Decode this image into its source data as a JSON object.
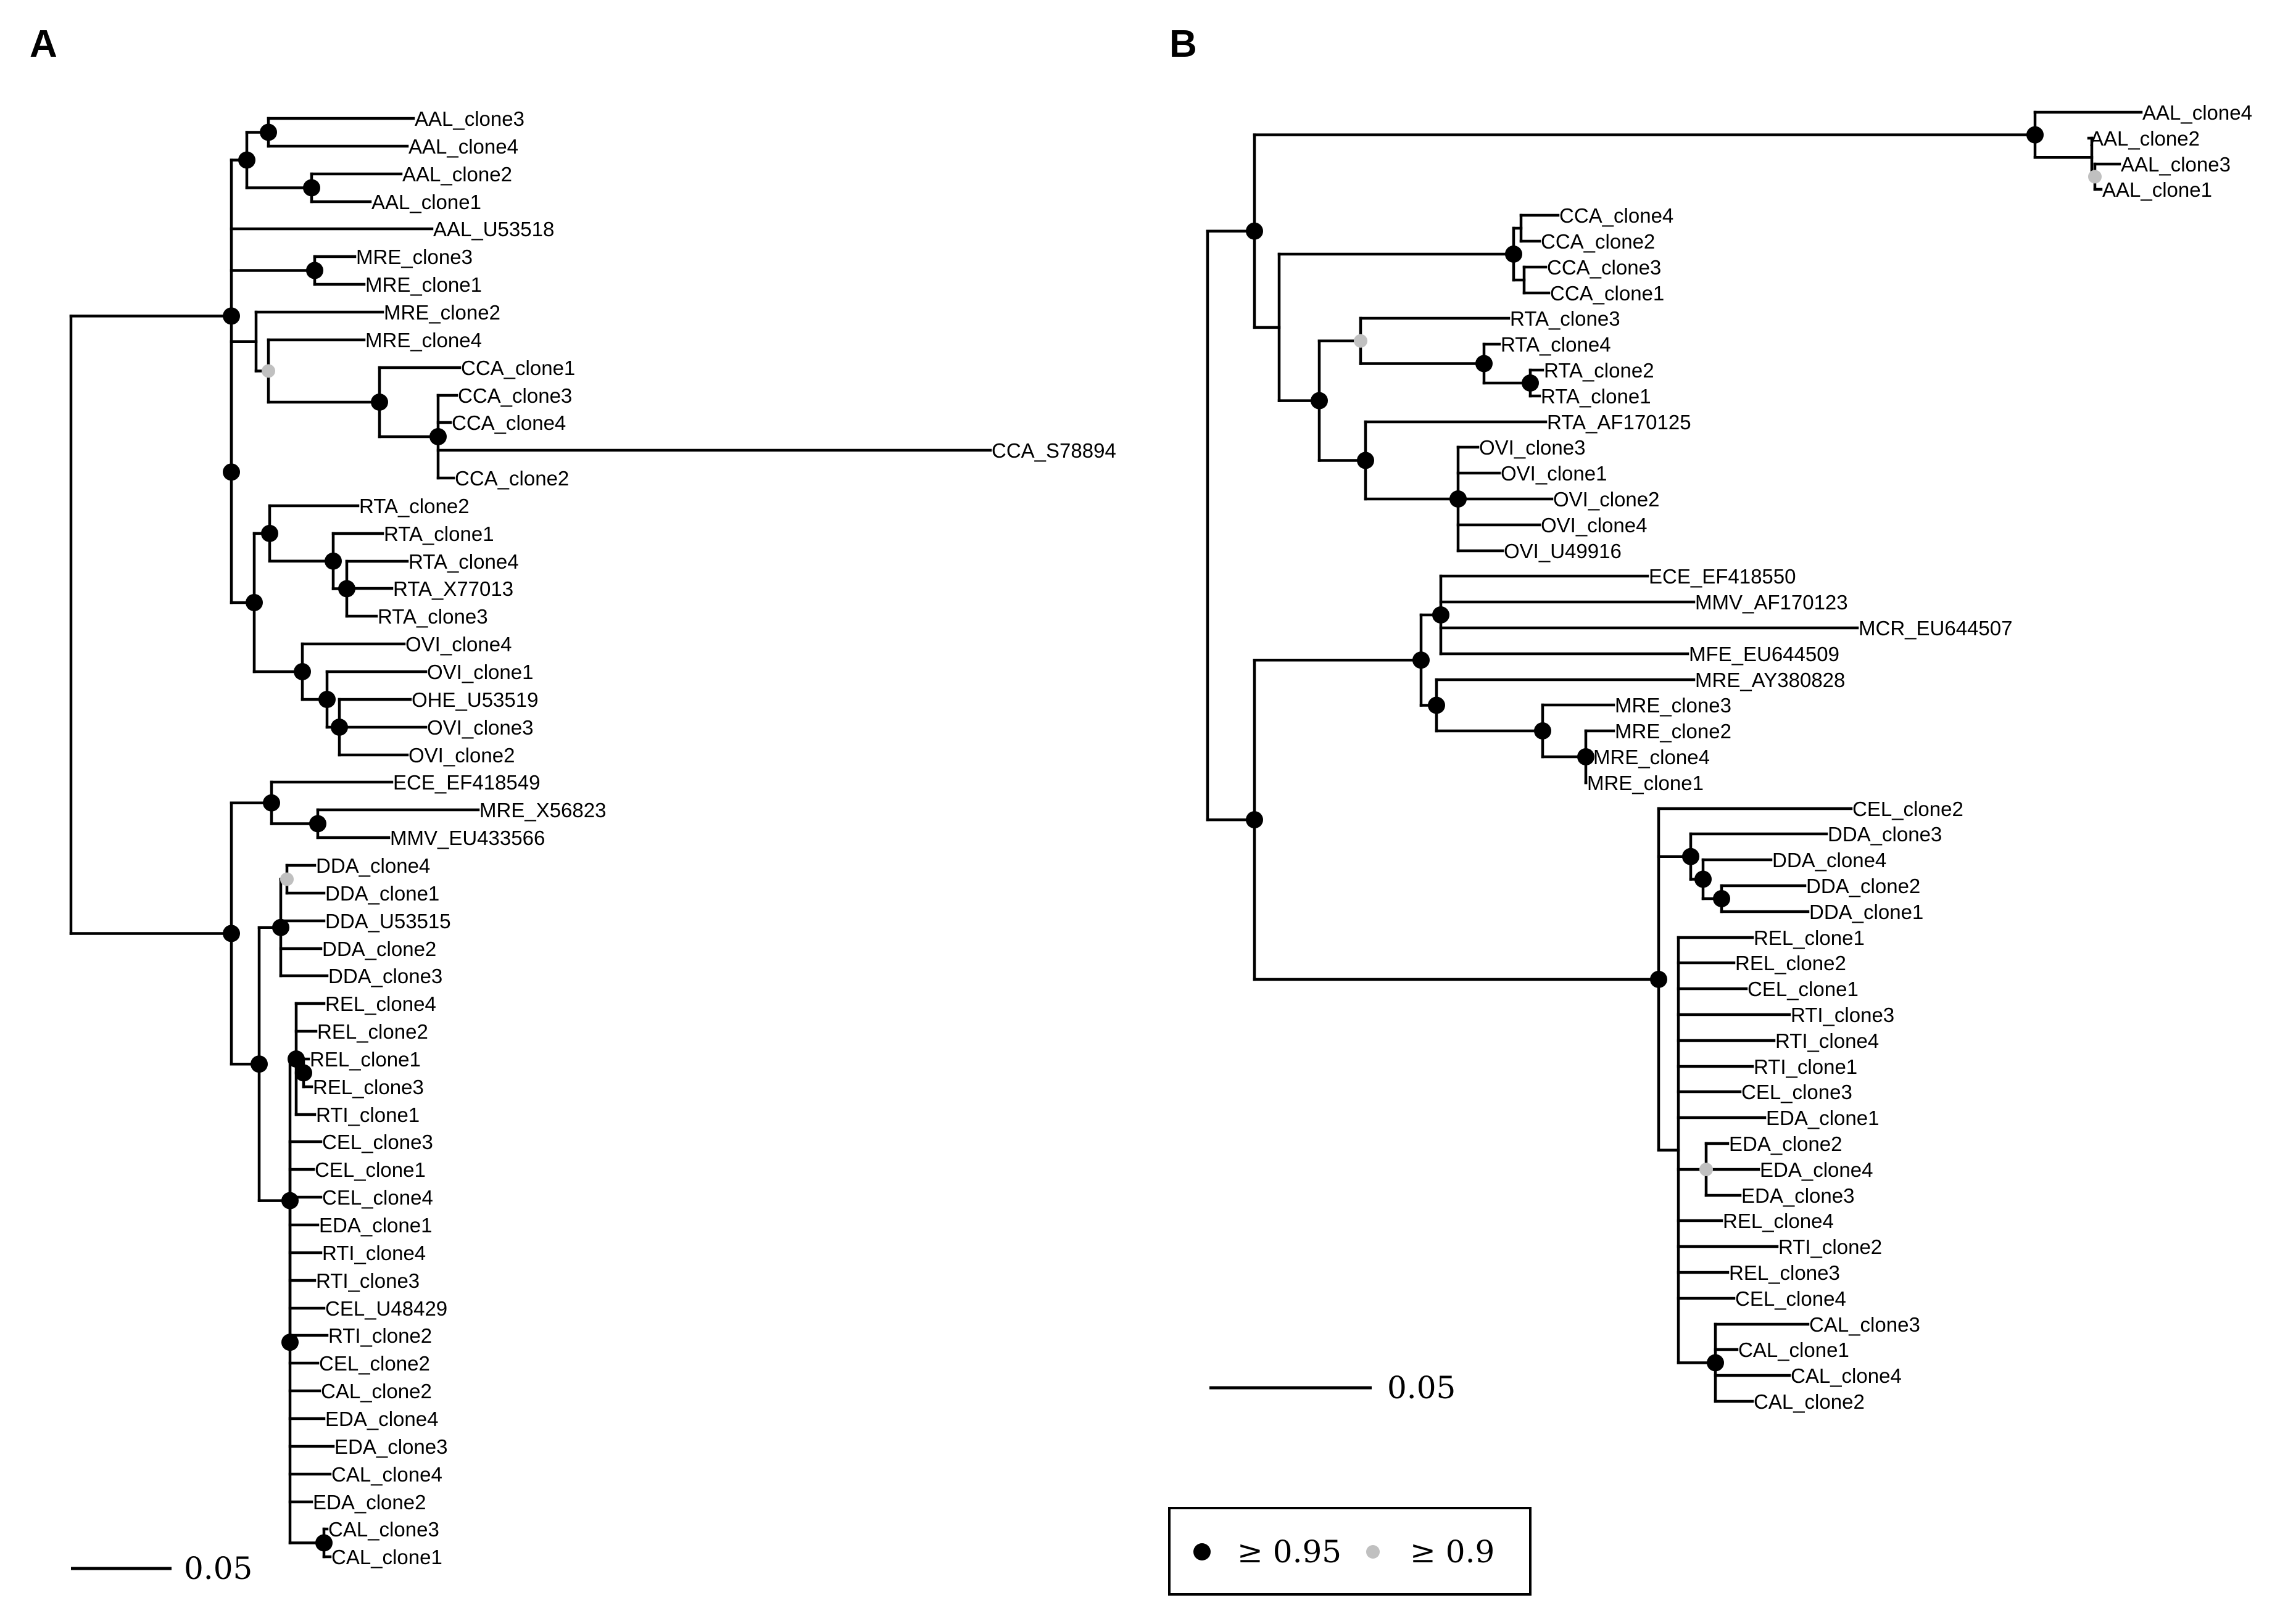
{
  "figure": {
    "panel_a": {
      "label": "A",
      "scale_bar": "0.05",
      "leaves": [
        "AAL_clone3",
        "AAL_clone4",
        "AAL_clone2",
        "AAL_clone1",
        "AAL_U53518",
        "MRE_clone3",
        "MRE_clone1",
        "MRE_clone2",
        "MRE_clone4",
        "CCA_clone1",
        "CCA_clone3",
        "CCA_clone4",
        "CCA_S78894",
        "CCA_clone2",
        "RTA_clone2",
        "RTA_clone1",
        "RTA_clone4",
        "RTA_X77013",
        "RTA_clone3",
        "OVI_clone4",
        "OVI_clone1",
        "OHE_U53519",
        "OVI_clone3",
        "OVI_clone2",
        "ECE_EF418549",
        "MRE_X56823",
        "MMV_EU433566",
        "DDA_clone4",
        "DDA_clone1",
        "DDA_U53515",
        "DDA_clone2",
        "DDA_clone3",
        "REL_clone4",
        "REL_clone2",
        "REL_clone1",
        "REL_clone3",
        "RTI_clone1",
        "CEL_clone3",
        "CEL_clone1",
        "CEL_clone4",
        "EDA_clone1",
        "RTI_clone4",
        "RTI_clone3",
        "CEL_U48429",
        "RTI_clone2",
        "CEL_clone2",
        "CAL_clone2",
        "EDA_clone4",
        "EDA_clone3",
        "CAL_clone4",
        "EDA_clone2",
        "CAL_clone3",
        "CAL_clone1"
      ]
    },
    "panel_b": {
      "label": "B",
      "scale_bar": "0.05",
      "leaves": [
        "AAL_clone4",
        "AAL_clone2",
        "AAL_clone3",
        "AAL_clone1",
        "CCA_clone4",
        "CCA_clone2",
        "CCA_clone3",
        "CCA_clone1",
        "RTA_clone3",
        "RTA_clone4",
        "RTA_clone2",
        "RTA_clone1",
        "RTA_AF170125",
        "OVI_clone3",
        "OVI_clone1",
        "OVI_clone2",
        "OVI_clone4",
        "OVI_U49916",
        "ECE_EF418550",
        "MMV_AF170123",
        "MCR_EU644507",
        "MFE_EU644509",
        "MRE_AY380828",
        "MRE_clone3",
        "MRE_clone2",
        "MRE_clone4",
        "MRE_clone1",
        "CEL_clone2",
        "DDA_clone3",
        "DDA_clone4",
        "DDA_clone2",
        "DDA_clone1",
        "REL_clone1",
        "REL_clone2",
        "CEL_clone1",
        "RTI_clone3",
        "RTI_clone4",
        "RTI_clone1",
        "CEL_clone3",
        "EDA_clone1",
        "EDA_clone2",
        "EDA_clone4",
        "EDA_clone3",
        "REL_clone4",
        "RTI_clone2",
        "REL_clone3",
        "CEL_clone4",
        "CAL_clone3",
        "CAL_clone1",
        "CAL_clone4",
        "CAL_clone2"
      ]
    },
    "legend": {
      "high_label": "≥ 0.95",
      "low_label": "≥ 0.9",
      "high_color": "#000000",
      "low_color": "#c0c0c0"
    }
  }
}
